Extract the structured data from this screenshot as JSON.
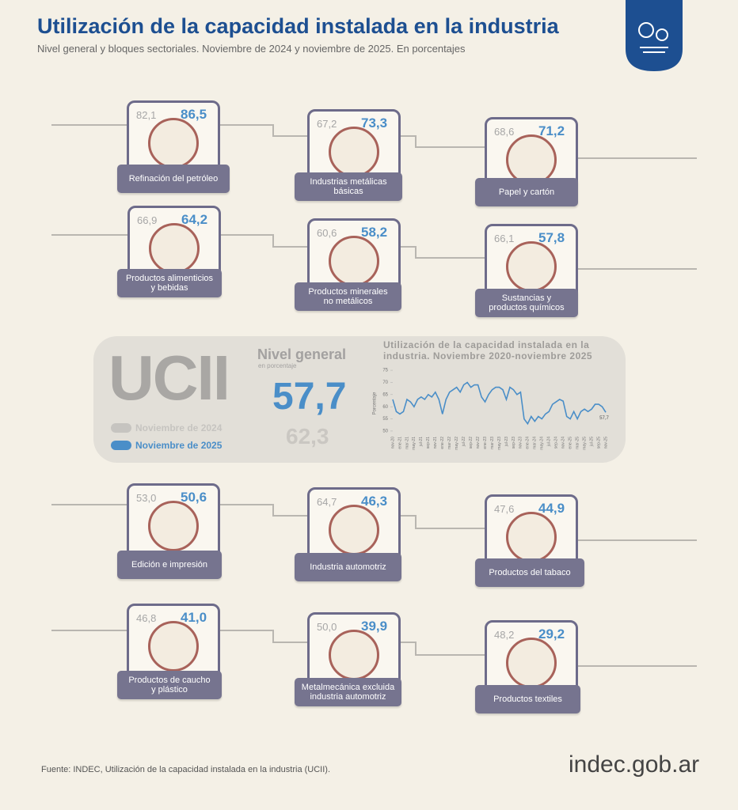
{
  "header": {
    "title": "Utilización de la capacidad instalada en la industria",
    "subtitle": "Nivel general y bloques sectoriales. Noviembre de 2024 y noviembre de 2025. En porcentajes"
  },
  "sectors": [
    {
      "name": "Refinación del petróleo",
      "prev": "82,1",
      "curr": "86,5"
    },
    {
      "name": "Industrias metálicas\nbásicas",
      "prev": "67,2",
      "curr": "73,3"
    },
    {
      "name": "Papel y cartón",
      "prev": "68,6",
      "curr": "71,2"
    },
    {
      "name": "Productos alimenticios\ny bebidas",
      "prev": "66,9",
      "curr": "64,2"
    },
    {
      "name": "Productos minerales\nno metálicos",
      "prev": "60,6",
      "curr": "58,2"
    },
    {
      "name": "Sustancias y\nproductos químicos",
      "prev": "66,1",
      "curr": "57,8"
    },
    {
      "name": "Edición e impresión",
      "prev": "53,0",
      "curr": "50,6"
    },
    {
      "name": "Industria automotriz",
      "prev": "64,7",
      "curr": "46,3"
    },
    {
      "name": "Productos del tabaco",
      "prev": "47,6",
      "curr": "44,9"
    },
    {
      "name": "Productos de caucho\ny plástico",
      "prev": "46,8",
      "curr": "41,0"
    },
    {
      "name": "Metalmecánica excluida\nindustria automotriz",
      "prev": "50,0",
      "curr": "39,9"
    },
    {
      "name": "Productos textiles",
      "prev": "48,2",
      "curr": "29,2"
    }
  ],
  "summary": {
    "code": "UCII",
    "title": "Nivel general",
    "unit": "en porcentaje",
    "legend_prev": "Noviembre de 2024",
    "legend_curr": "Noviembre de 2025",
    "current": "57,7",
    "previous": "62,3"
  },
  "chart_data": {
    "type": "line",
    "title": "Utilización de la capacidad instalada en la industria. Noviembre 2020-noviembre 2025",
    "y_label": "Porcentaje",
    "color": "#4a8ec8",
    "categories": [
      "nov-20",
      null,
      "ene-21",
      null,
      "mar-21",
      null,
      "may-21",
      null,
      "jul-21",
      null,
      "sep-21",
      null,
      "nov-21",
      null,
      "ene-22",
      null,
      "mar-22",
      null,
      "may-22",
      null,
      "jul-22",
      null,
      "sep-22",
      null,
      "nov-22",
      null,
      "ene-23",
      null,
      "mar-23",
      null,
      "may-23",
      null,
      "jul-23",
      null,
      "sep-23",
      null,
      "nov-23",
      null,
      "ene-24",
      null,
      "mar-24",
      null,
      "may-24",
      null,
      "jul-24",
      null,
      "sep-24",
      null,
      "nov-24",
      null,
      "ene-25",
      null,
      "mar-25",
      null,
      "may-25",
      null,
      "jul-25",
      null,
      "sep-25",
      null,
      "nov-25"
    ],
    "values": [
      63,
      58,
      57,
      58,
      63,
      62,
      60,
      63,
      64,
      63,
      65,
      64,
      66,
      63,
      57,
      63,
      66,
      67,
      68,
      66,
      69,
      70,
      68,
      69,
      69,
      64,
      62,
      65,
      67,
      68,
      68,
      67,
      63,
      68,
      67,
      65,
      66,
      55,
      53,
      56,
      54,
      56,
      55,
      57,
      58,
      61,
      62,
      63,
      62.3,
      56,
      55,
      58,
      55,
      58,
      59,
      58,
      59,
      61,
      61,
      60,
      57.7
    ],
    "value_labels": [
      null,
      null,
      null,
      null,
      null,
      null,
      null,
      null,
      null,
      null,
      null,
      null,
      null,
      null,
      null,
      null,
      null,
      null,
      null,
      null,
      null,
      null,
      null,
      null,
      null,
      null,
      null,
      null,
      null,
      null,
      null,
      null,
      null,
      null,
      null,
      null,
      null,
      null,
      null,
      null,
      null,
      null,
      null,
      null,
      null,
      null,
      null,
      null,
      null,
      null,
      null,
      null,
      null,
      null,
      null,
      null,
      null,
      null,
      null,
      null,
      "57,7"
    ],
    "ylim": [
      49,
      76
    ],
    "yticks": [
      50,
      55,
      60,
      65,
      70,
      75
    ],
    "grid": false
  },
  "footer": {
    "source": "Fuente: INDEC, Utilización de la capacidad instalada en la industria (UCII).",
    "brand": "indec.gob.ar"
  }
}
